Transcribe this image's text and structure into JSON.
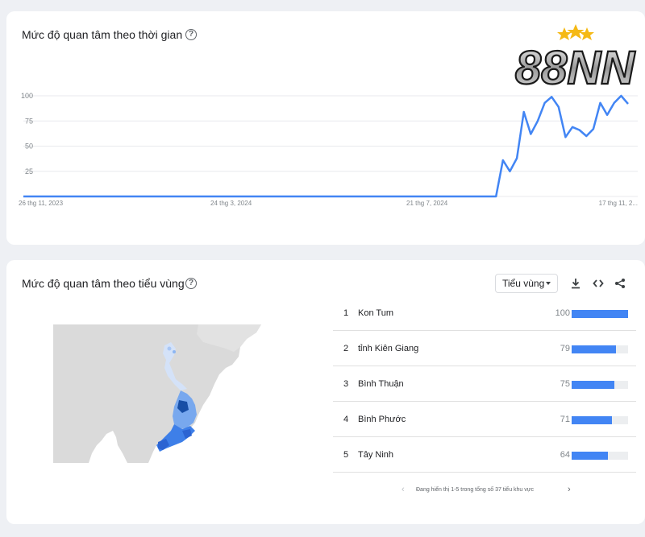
{
  "time_card": {
    "title": "Mức độ quan tâm theo thời gian",
    "help_icon": "help-circle-icon"
  },
  "watermark": {
    "text": "88NN"
  },
  "chart_data": {
    "type": "line",
    "title": "Mức độ quan tâm theo thời gian",
    "xlabel": "",
    "ylabel": "",
    "ylim": [
      0,
      100
    ],
    "yticks": [
      25,
      50,
      75,
      100
    ],
    "xtick_labels": [
      "26 thg 11, 2023",
      "24 thg 3, 2024",
      "21 thg 7, 2024",
      "17 thg 11, 2..."
    ],
    "grid": true,
    "series": [
      {
        "color": "#4285f4",
        "values": [
          0,
          0,
          0,
          0,
          0,
          0,
          0,
          0,
          0,
          0,
          0,
          0,
          0,
          0,
          0,
          0,
          0,
          0,
          0,
          0,
          0,
          0,
          0,
          0,
          0,
          0,
          0,
          0,
          0,
          0,
          0,
          0,
          0,
          0,
          0,
          0,
          0,
          0,
          0,
          0,
          0,
          0,
          0,
          0,
          0,
          0,
          0,
          0,
          0,
          0,
          0,
          0,
          0,
          0,
          0,
          0,
          0,
          0,
          0,
          0,
          0,
          0,
          0,
          0,
          0,
          0,
          0,
          0,
          0,
          36,
          25,
          38,
          84,
          62,
          75,
          93,
          99,
          89,
          59,
          69,
          66,
          60,
          67,
          93,
          81,
          93,
          100,
          92
        ]
      }
    ]
  },
  "region_card": {
    "title": "Mức độ quan tâm theo tiểu vùng",
    "help_icon": "help-circle-icon",
    "dropdown_label": "Tiểu vùng",
    "toolbar": [
      "download-icon",
      "embed-code-icon",
      "share-icon"
    ],
    "rows": [
      {
        "rank": "1",
        "name": "Kon Tum",
        "value": 100
      },
      {
        "rank": "2",
        "name": "tỉnh Kiên Giang",
        "value": 79
      },
      {
        "rank": "3",
        "name": "Bình Thuận",
        "value": 75
      },
      {
        "rank": "4",
        "name": "Bình Phước",
        "value": 71
      },
      {
        "rank": "5",
        "name": "Tây Ninh",
        "value": 64
      }
    ],
    "pager_text": "Đang hiển thị 1-5 trong tổng số 37 tiểu khu vực"
  },
  "colors": {
    "accent": "#4285f4",
    "bar_bg": "#eceef0",
    "page_bg": "#eef0f4"
  }
}
